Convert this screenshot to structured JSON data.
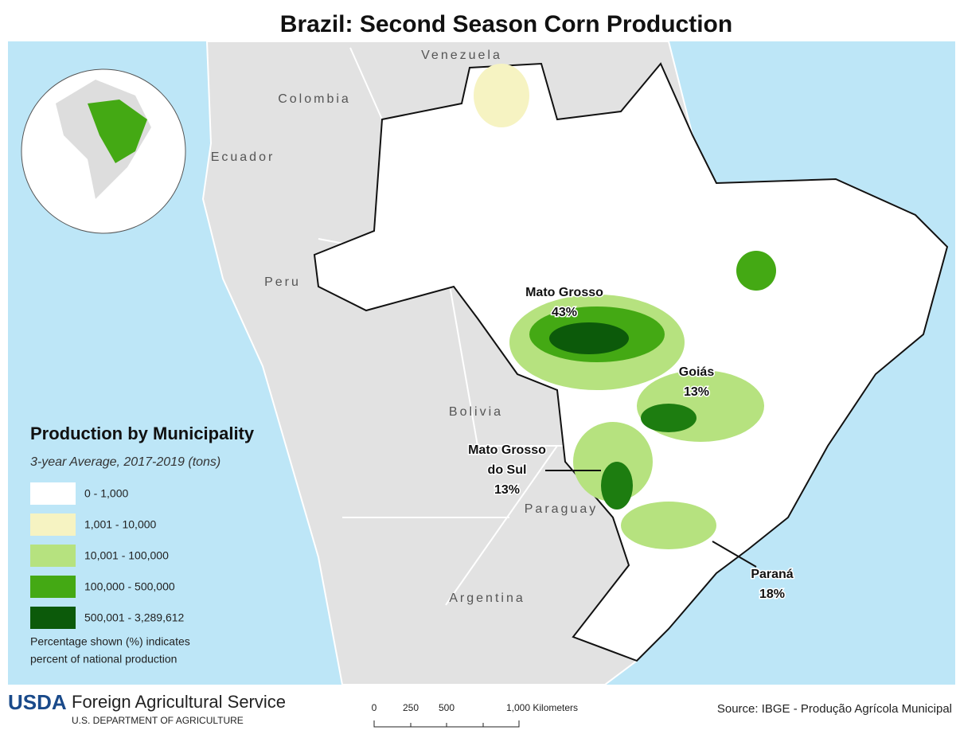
{
  "title": "Brazil: Second Season Corn Production",
  "countries": [
    "Venezuela",
    "Colombia",
    "Ecuador",
    "Peru",
    "Bolivia",
    "Paraguay",
    "Argentina"
  ],
  "states": [
    {
      "name": [
        "Mato Grosso"
      ],
      "share": "43%"
    },
    {
      "name": [
        "Goiás"
      ],
      "share": "13%"
    },
    {
      "name": [
        "Mato Grosso",
        "do Sul"
      ],
      "share": "13%"
    },
    {
      "name": [
        "Paraná"
      ],
      "share": "18%"
    }
  ],
  "legend": {
    "title": "Production by Municipality",
    "subtitle": "3-year Average, 2017-2019 (tons)",
    "items": [
      {
        "label": "0 - 1,000",
        "color": "#ffffff"
      },
      {
        "label": "1,001 - 10,000",
        "color": "#f6f3c2"
      },
      {
        "label": "10,001 - 100,000",
        "color": "#b6e27f"
      },
      {
        "label": "100,000 - 500,000",
        "color": "#44a914"
      },
      {
        "label": "500,001 - 3,289,612",
        "color": "#0c5a0a"
      }
    ],
    "note": [
      "Percentage shown (%) indicates",
      "percent of national production"
    ]
  },
  "footer": {
    "logo": "USDA",
    "agency": "Foreign Agricultural Service",
    "department": "U.S. DEPARTMENT OF AGRICULTURE",
    "scale": [
      "0",
      "250",
      "500",
      "1,000 Kilometers"
    ],
    "source": "Source: IBGE - Produção Agrícola Municipal"
  }
}
